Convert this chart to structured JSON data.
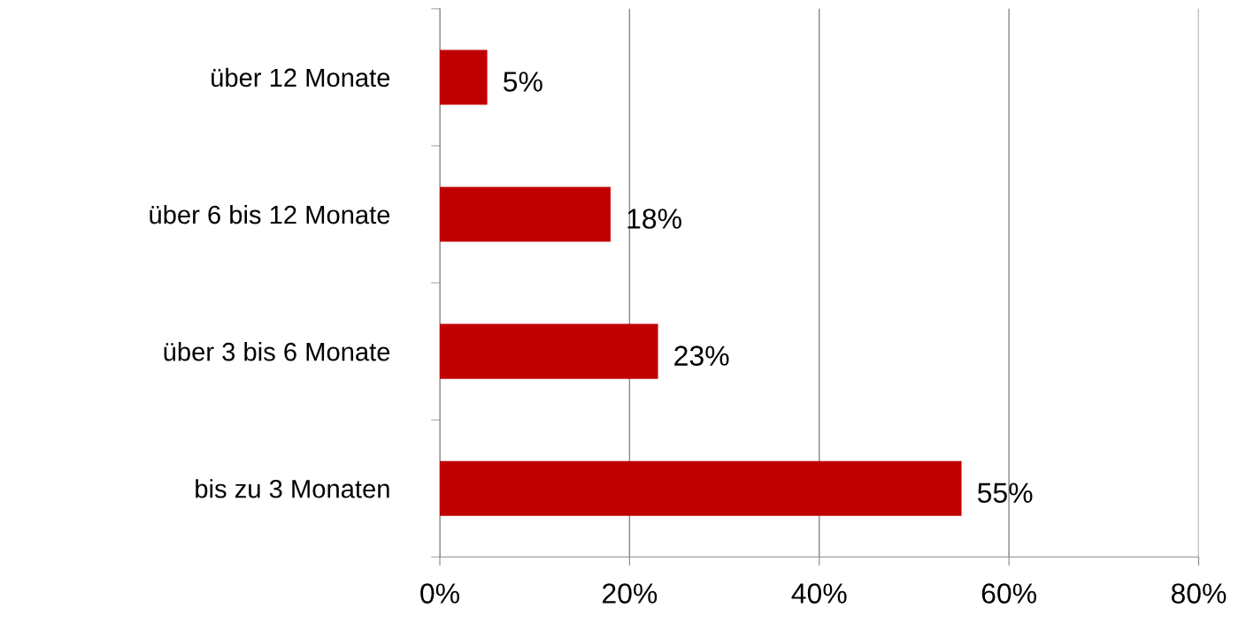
{
  "chart_data": {
    "type": "bar",
    "orientation": "horizontal",
    "categories": [
      "über 12 Monate",
      "über 6 bis 12 Monate",
      "über 3 bis 6 Monate",
      "bis zu 3 Monaten"
    ],
    "values": [
      5,
      18,
      23,
      55
    ],
    "value_labels": [
      "5%",
      "18%",
      "23%",
      "55%"
    ],
    "color": "#c00000",
    "xlim": [
      0,
      80
    ],
    "xticks": [
      {
        "value": 0,
        "label": "0%"
      },
      {
        "value": 20,
        "label": "20%"
      },
      {
        "value": 40,
        "label": "40%"
      },
      {
        "value": 60,
        "label": "60%"
      },
      {
        "value": 80,
        "label": "80%"
      }
    ],
    "grid": "x",
    "legend": false
  }
}
